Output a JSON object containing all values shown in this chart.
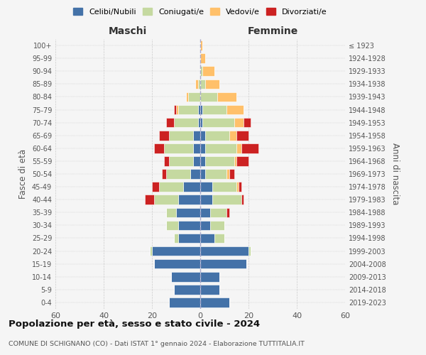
{
  "age_groups": [
    "0-4",
    "5-9",
    "10-14",
    "15-19",
    "20-24",
    "25-29",
    "30-34",
    "35-39",
    "40-44",
    "45-49",
    "50-54",
    "55-59",
    "60-64",
    "65-69",
    "70-74",
    "75-79",
    "80-84",
    "85-89",
    "90-94",
    "95-99",
    "100+"
  ],
  "birth_years": [
    "2019-2023",
    "2014-2018",
    "2009-2013",
    "2004-2008",
    "1999-2003",
    "1994-1998",
    "1989-1993",
    "1984-1988",
    "1979-1983",
    "1974-1978",
    "1969-1973",
    "1964-1968",
    "1959-1963",
    "1954-1958",
    "1949-1953",
    "1944-1948",
    "1939-1943",
    "1934-1938",
    "1929-1933",
    "1924-1928",
    "≤ 1923"
  ],
  "maschi": {
    "celibi": [
      13,
      11,
      12,
      19,
      20,
      9,
      9,
      10,
      9,
      7,
      4,
      3,
      3,
      3,
      1,
      1,
      0,
      0,
      0,
      0,
      0
    ],
    "coniugati": [
      0,
      0,
      0,
      0,
      1,
      2,
      5,
      4,
      10,
      10,
      10,
      10,
      12,
      10,
      10,
      8,
      5,
      1,
      0,
      0,
      0
    ],
    "vedovi": [
      0,
      0,
      0,
      0,
      0,
      0,
      0,
      0,
      0,
      0,
      0,
      0,
      0,
      0,
      0,
      1,
      1,
      1,
      0,
      0,
      0
    ],
    "divorziati": [
      0,
      0,
      0,
      0,
      0,
      0,
      0,
      0,
      4,
      3,
      2,
      2,
      4,
      4,
      3,
      1,
      0,
      0,
      0,
      0,
      0
    ]
  },
  "femmine": {
    "nubili": [
      12,
      8,
      8,
      19,
      20,
      6,
      4,
      4,
      5,
      5,
      2,
      2,
      2,
      2,
      1,
      1,
      0,
      0,
      0,
      0,
      0
    ],
    "coniugate": [
      0,
      0,
      0,
      0,
      1,
      4,
      6,
      7,
      12,
      10,
      9,
      12,
      13,
      10,
      13,
      10,
      7,
      2,
      1,
      0,
      0
    ],
    "vedove": [
      0,
      0,
      0,
      0,
      0,
      0,
      0,
      0,
      0,
      1,
      1,
      1,
      2,
      3,
      4,
      7,
      8,
      6,
      5,
      2,
      1
    ],
    "divorziate": [
      0,
      0,
      0,
      0,
      0,
      0,
      0,
      1,
      1,
      1,
      2,
      5,
      7,
      5,
      3,
      0,
      0,
      0,
      0,
      0,
      0
    ]
  },
  "colors": {
    "celibi": "#4472a8",
    "coniugati": "#c5d9a0",
    "vedovi": "#ffc06a",
    "divorziati": "#cc2222"
  },
  "xlim": 60,
  "title": "Popolazione per età, sesso e stato civile - 2024",
  "subtitle": "COMUNE DI SCHIGNANO (CO) - Dati ISTAT 1° gennaio 2024 - Elaborazione TUTTITALIA.IT",
  "ylabel_left": "Fasce di età",
  "ylabel_right": "Anni di nascita",
  "xlabel_maschi": "Maschi",
  "xlabel_femmine": "Femmine",
  "legend_labels": [
    "Celibi/Nubili",
    "Coniugati/e",
    "Vedovi/e",
    "Divorziati/e"
  ],
  "bg_color": "#f5f5f5",
  "grid_color": "#cccccc"
}
